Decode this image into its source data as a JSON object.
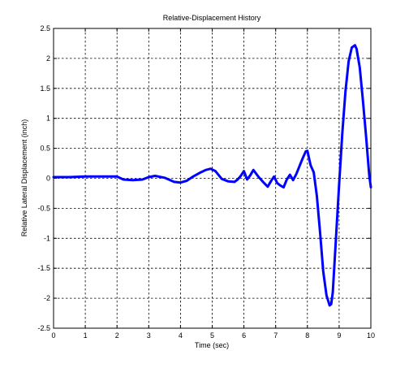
{
  "chart_data": {
    "type": "line",
    "title": "Relative-Displacement History",
    "xlabel": "Time (sec)",
    "ylabel": "Relative Lateral Displacement (inch)",
    "xlim": [
      0,
      10
    ],
    "ylim": [
      -2.5,
      2.5
    ],
    "xticks": [
      0,
      1,
      2,
      3,
      4,
      5,
      6,
      7,
      8,
      9,
      10
    ],
    "yticks": [
      -2.5,
      -2,
      -1.5,
      -1,
      -0.5,
      0,
      0.5,
      1,
      1.5,
      2,
      2.5
    ],
    "xtick_labels": [
      "0",
      "1",
      "2",
      "3",
      "4",
      "5",
      "6",
      "7",
      "8",
      "9",
      "10"
    ],
    "ytick_labels": [
      "-2.5",
      "-2",
      "-1.5",
      "-1",
      "-0.5",
      "0",
      "0.5",
      "1",
      "1.5",
      "2",
      "2.5"
    ],
    "grid": true,
    "series": [
      {
        "color": "#0000ff",
        "x": [
          0,
          0.5,
          1.0,
          1.5,
          2.0,
          2.2,
          2.5,
          2.8,
          3.0,
          3.2,
          3.5,
          3.8,
          4.0,
          4.2,
          4.4,
          4.6,
          4.8,
          4.95,
          5.1,
          5.3,
          5.5,
          5.7,
          5.8,
          5.9,
          6.0,
          6.1,
          6.2,
          6.3,
          6.45,
          6.6,
          6.75,
          6.85,
          6.95,
          7.05,
          7.15,
          7.25,
          7.35,
          7.45,
          7.55,
          7.65,
          7.75,
          7.85,
          7.95,
          8.0,
          8.1,
          8.2,
          8.3,
          8.4,
          8.5,
          8.6,
          8.7,
          8.75,
          8.8,
          8.9,
          9.0,
          9.1,
          9.2,
          9.3,
          9.4,
          9.5,
          9.55,
          9.65,
          9.75,
          9.85,
          9.95,
          10.0
        ],
        "y": [
          0.02,
          0.02,
          0.03,
          0.03,
          0.03,
          -0.02,
          -0.03,
          -0.02,
          0.02,
          0.04,
          0.01,
          -0.06,
          -0.07,
          -0.04,
          0.03,
          0.09,
          0.14,
          0.16,
          0.12,
          -0.01,
          -0.05,
          -0.06,
          -0.02,
          0.04,
          0.12,
          -0.02,
          0.05,
          0.14,
          0.03,
          -0.06,
          -0.14,
          -0.05,
          0.03,
          -0.08,
          -0.12,
          -0.15,
          -0.02,
          0.06,
          -0.03,
          0.07,
          0.2,
          0.33,
          0.45,
          0.46,
          0.22,
          0.1,
          -0.3,
          -0.9,
          -1.55,
          -1.95,
          -2.12,
          -2.1,
          -1.9,
          -1.0,
          -0.1,
          0.75,
          1.45,
          1.95,
          2.18,
          2.22,
          2.16,
          1.85,
          1.3,
          0.7,
          0.05,
          -0.15
        ]
      }
    ]
  }
}
